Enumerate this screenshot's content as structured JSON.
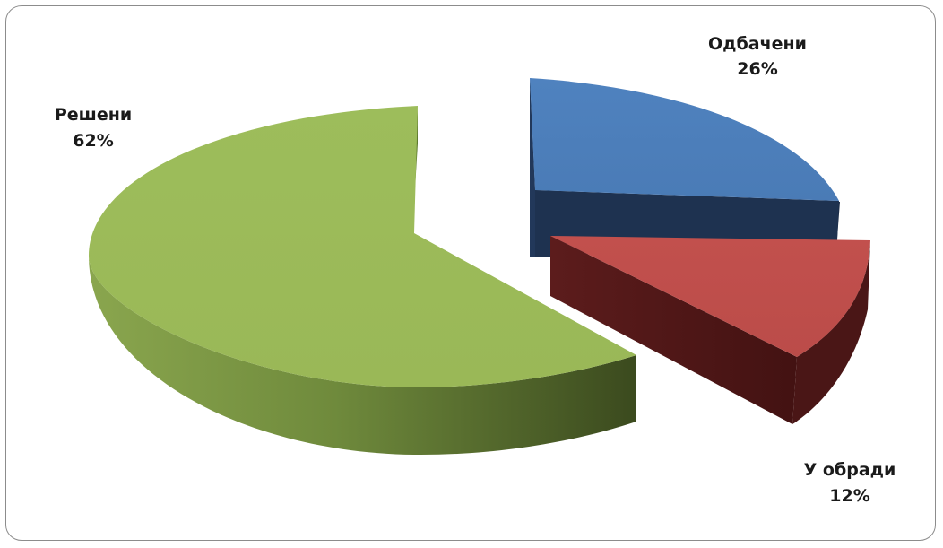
{
  "chart_data": {
    "type": "pie",
    "style": "3d-exploded",
    "categories": [
      "Одбачени",
      "У обради",
      "Решени"
    ],
    "values": [
      26,
      12,
      62
    ],
    "percent_labels": [
      "26%",
      "12%",
      "62%"
    ],
    "colors": [
      "#4f81bd",
      "#c0504d",
      "#9bbb59"
    ],
    "title": "",
    "legend": "none"
  }
}
